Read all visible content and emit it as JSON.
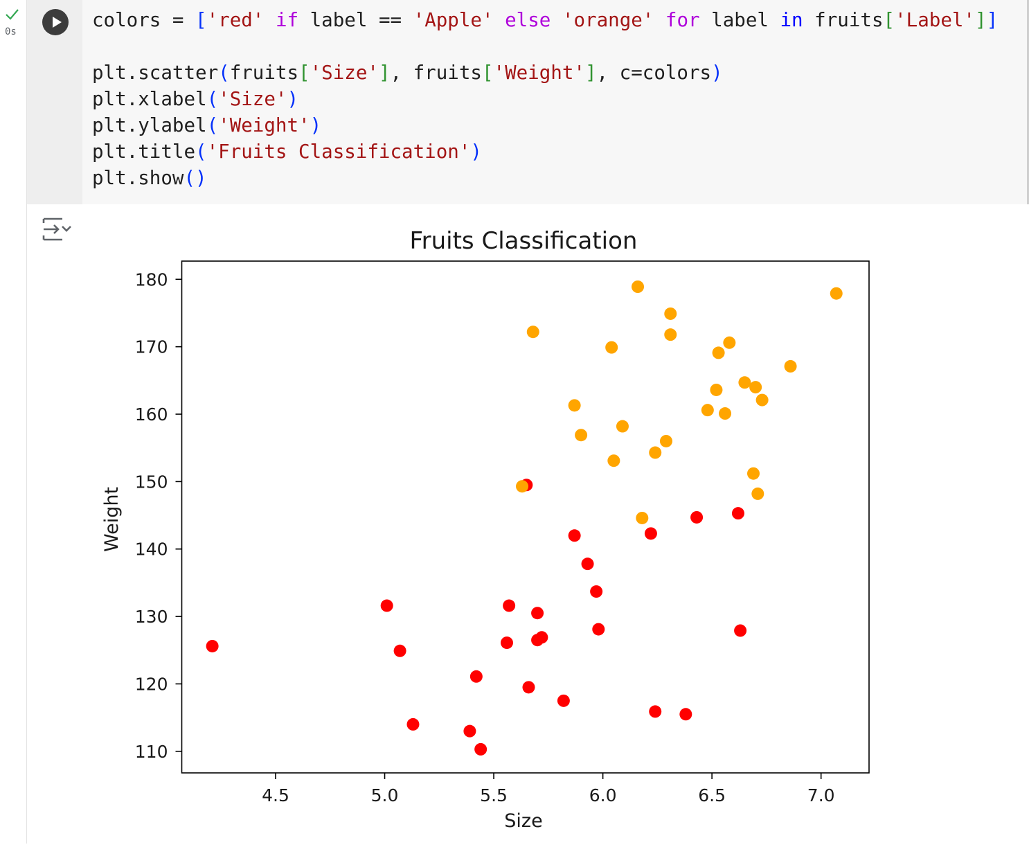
{
  "cell": {
    "status": "success",
    "exec_time": "0s",
    "code_lines": [
      "colors = ['red' if label == 'Apple' else 'orange' for label in fruits['Label']]",
      "",
      "plt.scatter(fruits['Size'], fruits['Weight'], c=colors)",
      "plt.xlabel('Size')",
      "plt.ylabel('Weight')",
      "plt.title('Fruits Classification')",
      "plt.show()"
    ]
  },
  "icons": {
    "status": "checkmark-icon",
    "run": "play-icon",
    "output_toggle": "output-toggle-icon"
  },
  "colors": {
    "apple": "#ff0000",
    "orange": "#ffa500",
    "cell_bg": "#f7f7f7",
    "success": "#34a853"
  },
  "chart_data": {
    "type": "scatter",
    "title": "Fruits Classification",
    "xlabel": "Size",
    "ylabel": "Weight",
    "xlim": [
      4.07,
      7.22
    ],
    "ylim": [
      106.8,
      182.7
    ],
    "xticks": [
      "4.5",
      "5.0",
      "5.5",
      "6.0",
      "6.5",
      "7.0"
    ],
    "yticks": [
      "110",
      "120",
      "130",
      "140",
      "150",
      "160",
      "170",
      "180"
    ],
    "grid": false,
    "series": [
      {
        "color": "#ff0000",
        "points": [
          [
            4.21,
            125.6
          ],
          [
            5.01,
            131.6
          ],
          [
            5.07,
            124.9
          ],
          [
            5.13,
            114.0
          ],
          [
            5.39,
            113.0
          ],
          [
            5.42,
            121.1
          ],
          [
            5.44,
            110.3
          ],
          [
            5.56,
            126.1
          ],
          [
            5.57,
            131.6
          ],
          [
            5.65,
            149.5
          ],
          [
            5.66,
            119.5
          ],
          [
            5.7,
            130.5
          ],
          [
            5.7,
            126.5
          ],
          [
            5.72,
            126.9
          ],
          [
            5.82,
            117.5
          ],
          [
            5.87,
            142.0
          ],
          [
            5.93,
            137.8
          ],
          [
            5.97,
            133.7
          ],
          [
            5.98,
            128.1
          ],
          [
            6.22,
            142.3
          ],
          [
            6.24,
            115.9
          ],
          [
            6.38,
            115.5
          ],
          [
            6.43,
            144.7
          ],
          [
            6.62,
            145.3
          ],
          [
            6.63,
            127.9
          ]
        ]
      },
      {
        "color": "#ffa500",
        "points": [
          [
            5.63,
            149.3
          ],
          [
            5.68,
            172.2
          ],
          [
            5.87,
            161.3
          ],
          [
            5.9,
            156.9
          ],
          [
            6.04,
            169.9
          ],
          [
            6.05,
            153.1
          ],
          [
            6.09,
            158.2
          ],
          [
            6.16,
            178.9
          ],
          [
            6.18,
            144.6
          ],
          [
            6.24,
            154.3
          ],
          [
            6.29,
            156.0
          ],
          [
            6.31,
            174.9
          ],
          [
            6.31,
            171.8
          ],
          [
            6.48,
            160.6
          ],
          [
            6.52,
            163.6
          ],
          [
            6.53,
            169.1
          ],
          [
            6.56,
            160.1
          ],
          [
            6.58,
            170.6
          ],
          [
            6.65,
            164.7
          ],
          [
            6.69,
            151.2
          ],
          [
            6.7,
            164.0
          ],
          [
            6.71,
            148.2
          ],
          [
            6.73,
            162.1
          ],
          [
            6.86,
            167.1
          ],
          [
            7.07,
            177.9
          ]
        ]
      }
    ]
  }
}
